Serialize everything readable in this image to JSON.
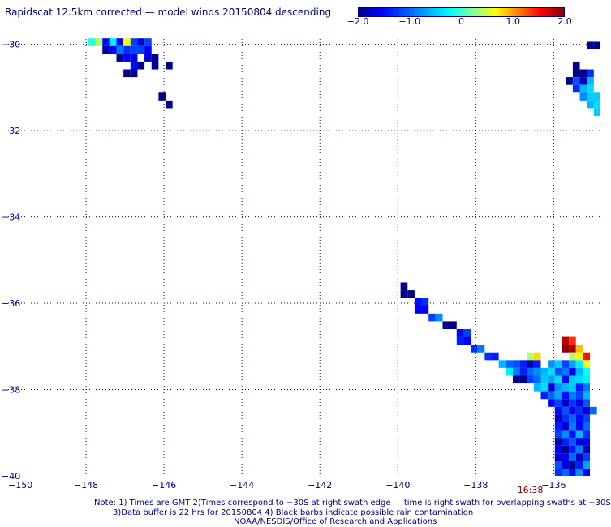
{
  "title": "Rapidscat 12.5km corrected — model winds 20150804 descending",
  "colorbar": {
    "ticks": [
      "−2.0",
      "−1.0",
      "0",
      "1.0",
      "2.0"
    ],
    "tick_values": [
      -2.0,
      -1.0,
      0,
      1.0,
      2.0
    ],
    "min": -2.0,
    "max": 2.0,
    "colors": [
      "#00008b",
      "#0000ff",
      "#0050ff",
      "#00aaff",
      "#00ffff",
      "#80ffa0",
      "#ffff00",
      "#ff8000",
      "#ff0000",
      "#8b0000"
    ]
  },
  "chart_data": {
    "type": "heatmap",
    "title": "Rapidscat 12.5km corrected — model winds 20150804 descending",
    "xlabel": "",
    "ylabel": "",
    "xlim": [
      -150,
      -134.8
    ],
    "ylim": [
      -40,
      -29.8
    ],
    "x_ticks": [
      -150,
      -148,
      -146,
      -144,
      -142,
      -140,
      -138,
      -136
    ],
    "x_tick_labels": [
      "−150",
      "−148",
      "−146",
      "−144",
      "−142",
      "−140",
      "−138",
      "−136"
    ],
    "y_ticks": [
      -30,
      -32,
      -34,
      -36,
      -38,
      -40
    ],
    "y_tick_labels": [
      "−30",
      "−32",
      "−34",
      "−36",
      "−38",
      "−40"
    ],
    "grid": true,
    "cell_size_deg": 0.18,
    "time_annotation": {
      "text": "16:38",
      "lon": -136.6
    },
    "cells": [
      [
        -147.85,
        -29.95,
        -0.1
      ],
      [
        -147.67,
        -29.95,
        0.4
      ],
      [
        -147.49,
        -29.95,
        -1.5
      ],
      [
        -147.31,
        -29.95,
        -0.3
      ],
      [
        -147.13,
        -29.95,
        -1.6
      ],
      [
        -146.95,
        -29.95,
        0.6
      ],
      [
        -146.77,
        -29.95,
        -1.2
      ],
      [
        -146.59,
        -29.95,
        -1.7
      ],
      [
        -146.41,
        -29.95,
        -1.2
      ],
      [
        -147.49,
        -30.13,
        -1.9
      ],
      [
        -147.31,
        -30.13,
        -1.6
      ],
      [
        -147.13,
        -30.13,
        -0.9
      ],
      [
        -146.95,
        -30.13,
        -1.3
      ],
      [
        -146.77,
        -30.13,
        -1.2
      ],
      [
        -146.59,
        -30.13,
        -1.2
      ],
      [
        -146.41,
        -30.13,
        -1.6
      ],
      [
        -147.13,
        -30.31,
        -2.0
      ],
      [
        -146.95,
        -30.31,
        -1.6
      ],
      [
        -146.77,
        -30.31,
        -1.7
      ],
      [
        -146.41,
        -30.31,
        -1.7
      ],
      [
        -146.23,
        -30.31,
        -2.1
      ],
      [
        -146.77,
        -30.49,
        -1.5
      ],
      [
        -146.59,
        -30.49,
        -2.2
      ],
      [
        -146.23,
        -30.49,
        -2.3
      ],
      [
        -145.87,
        -30.49,
        -2.2
      ],
      [
        -146.95,
        -30.67,
        -2.4
      ],
      [
        -146.77,
        -30.67,
        -2.4
      ],
      [
        -146.05,
        -31.21,
        -2.4
      ],
      [
        -145.87,
        -31.39,
        -2.0
      ],
      [
        -135.06,
        -30.03,
        -2.0
      ],
      [
        -134.88,
        -30.03,
        -2.0
      ],
      [
        -135.42,
        -30.49,
        -2.2
      ],
      [
        -135.42,
        -30.67,
        -2.4
      ],
      [
        -135.24,
        -30.67,
        -2.0
      ],
      [
        -135.06,
        -30.67,
        -1.3
      ],
      [
        -135.6,
        -30.85,
        -2.2
      ],
      [
        -135.42,
        -30.85,
        -1.1
      ],
      [
        -135.24,
        -30.85,
        -1.8
      ],
      [
        -135.06,
        -30.85,
        -0.6
      ],
      [
        -135.42,
        -31.03,
        -1.3
      ],
      [
        -135.24,
        -31.03,
        -0.6
      ],
      [
        -135.06,
        -31.03,
        -0.4
      ],
      [
        -135.24,
        -31.21,
        -0.8
      ],
      [
        -135.06,
        -31.21,
        -0.5
      ],
      [
        -134.88,
        -31.21,
        -0.5
      ],
      [
        -135.06,
        -31.39,
        -0.6
      ],
      [
        -134.88,
        -31.39,
        -0.4
      ],
      [
        -134.88,
        -31.57,
        -0.5
      ],
      [
        -139.84,
        -35.61,
        -2.0
      ],
      [
        -139.84,
        -35.79,
        -2.0
      ],
      [
        -139.66,
        -35.79,
        -2.0
      ],
      [
        -139.48,
        -35.97,
        -1.5
      ],
      [
        -139.3,
        -35.97,
        -1.3
      ],
      [
        -139.48,
        -36.15,
        -1.6
      ],
      [
        -139.3,
        -36.15,
        -1.6
      ],
      [
        -139.12,
        -36.33,
        -1.2
      ],
      [
        -138.94,
        -36.33,
        -0.8
      ],
      [
        -138.76,
        -36.51,
        -2.2
      ],
      [
        -138.58,
        -36.51,
        -2.3
      ],
      [
        -138.4,
        -36.69,
        -1.6
      ],
      [
        -138.22,
        -36.69,
        -1.2
      ],
      [
        -138.4,
        -36.87,
        -1.4
      ],
      [
        -138.22,
        -36.87,
        -1.6
      ],
      [
        -138.04,
        -37.05,
        -1.3
      ],
      [
        -137.86,
        -37.05,
        -0.9
      ],
      [
        -137.68,
        -37.23,
        -1.3
      ],
      [
        -137.5,
        -37.23,
        -1.4
      ],
      [
        -137.32,
        -37.41,
        -0.6
      ],
      [
        -137.14,
        -37.41,
        -1.0
      ],
      [
        -136.96,
        -37.41,
        -1.1
      ],
      [
        -136.78,
        -37.41,
        -1.4
      ],
      [
        -137.14,
        -37.59,
        -0.3
      ],
      [
        -136.96,
        -37.59,
        -0.9
      ],
      [
        -136.78,
        -37.59,
        -1.4
      ],
      [
        -136.6,
        -37.59,
        -1.0
      ],
      [
        -136.96,
        -37.77,
        -2.1
      ],
      [
        -136.78,
        -37.77,
        -2.0
      ],
      [
        -136.6,
        -37.77,
        -1.2
      ],
      [
        -136.6,
        -37.23,
        0.4
      ],
      [
        -136.42,
        -37.23,
        0.8
      ],
      [
        -136.6,
        -37.41,
        -1.9
      ],
      [
        -136.42,
        -37.41,
        -1.4
      ],
      [
        -136.42,
        -37.59,
        -0.8
      ],
      [
        -136.24,
        -37.59,
        -0.6
      ],
      [
        -136.42,
        -37.77,
        -1.0
      ],
      [
        -136.24,
        -37.77,
        -0.5
      ],
      [
        -136.42,
        -37.95,
        -0.6
      ],
      [
        -136.24,
        -37.95,
        -0.4
      ],
      [
        -135.7,
        -36.87,
        1.8
      ],
      [
        -135.52,
        -36.87,
        1.4
      ],
      [
        -135.7,
        -37.05,
        2.0
      ],
      [
        -135.52,
        -37.05,
        1.9
      ],
      [
        -135.34,
        -37.05,
        0.9
      ],
      [
        -135.34,
        -37.23,
        0.6
      ],
      [
        -135.16,
        -37.23,
        1.5
      ],
      [
        -135.52,
        -37.23,
        0.4
      ],
      [
        -136.06,
        -37.41,
        -0.8
      ],
      [
        -135.88,
        -37.41,
        -0.5
      ],
      [
        -135.7,
        -37.41,
        -1.2
      ],
      [
        -135.52,
        -37.41,
        -0.7
      ],
      [
        -135.34,
        -37.41,
        -0.3
      ],
      [
        -135.16,
        -37.41,
        0.6
      ],
      [
        -136.06,
        -37.59,
        -0.4
      ],
      [
        -135.88,
        -37.59,
        -1.1
      ],
      [
        -135.7,
        -37.59,
        -0.9
      ],
      [
        -135.52,
        -37.59,
        -1.6
      ],
      [
        -135.34,
        -37.59,
        -0.6
      ],
      [
        -135.16,
        -37.59,
        -0.2
      ],
      [
        -136.06,
        -37.77,
        -0.7
      ],
      [
        -135.88,
        -37.77,
        -0.4
      ],
      [
        -135.7,
        -37.77,
        -1.5
      ],
      [
        -135.52,
        -37.77,
        -0.5
      ],
      [
        -135.34,
        -37.77,
        -0.4
      ],
      [
        -135.16,
        -37.77,
        -0.3
      ],
      [
        -136.06,
        -37.95,
        -1.7
      ],
      [
        -135.88,
        -37.95,
        -0.8
      ],
      [
        -135.7,
        -37.95,
        -0.6
      ],
      [
        -135.52,
        -37.95,
        -0.5
      ],
      [
        -135.34,
        -37.95,
        -1.4
      ],
      [
        -135.16,
        -37.95,
        -0.9
      ],
      [
        -136.24,
        -38.13,
        -1.4
      ],
      [
        -136.06,
        -38.13,
        -1.0
      ],
      [
        -135.88,
        -38.13,
        -0.7
      ],
      [
        -135.7,
        -38.13,
        -1.5
      ],
      [
        -135.52,
        -38.13,
        -0.9
      ],
      [
        -135.34,
        -38.13,
        -1.2
      ],
      [
        -135.16,
        -38.13,
        -0.6
      ],
      [
        -136.06,
        -38.31,
        -1.6
      ],
      [
        -135.88,
        -38.31,
        -1.2
      ],
      [
        -135.7,
        -38.31,
        -1.8
      ],
      [
        -135.52,
        -38.31,
        -1.3
      ],
      [
        -135.34,
        -38.31,
        -1.7
      ],
      [
        -135.16,
        -38.31,
        -1.1
      ],
      [
        -135.88,
        -38.49,
        -1.5
      ],
      [
        -135.7,
        -38.49,
        -1.1
      ],
      [
        -135.52,
        -38.49,
        -1.6
      ],
      [
        -135.34,
        -38.49,
        -1.3
      ],
      [
        -135.16,
        -38.49,
        -1.8
      ],
      [
        -134.98,
        -38.49,
        -1.0
      ],
      [
        -135.88,
        -38.67,
        -1.8
      ],
      [
        -135.7,
        -38.67,
        -1.3
      ],
      [
        -135.52,
        -38.67,
        -1.0
      ],
      [
        -135.34,
        -38.67,
        -1.5
      ],
      [
        -135.16,
        -38.67,
        -1.2
      ],
      [
        -135.88,
        -38.85,
        -1.4
      ],
      [
        -135.7,
        -38.85,
        -1.7
      ],
      [
        -135.52,
        -38.85,
        -0.9
      ],
      [
        -135.34,
        -38.85,
        -1.6
      ],
      [
        -135.16,
        -38.85,
        -1.0
      ],
      [
        -135.88,
        -39.03,
        -1.2
      ],
      [
        -135.7,
        -39.03,
        -0.8
      ],
      [
        -135.52,
        -39.03,
        -1.5
      ],
      [
        -135.34,
        -39.03,
        -0.6
      ],
      [
        -135.16,
        -39.03,
        -1.3
      ],
      [
        -135.88,
        -39.21,
        -1.9
      ],
      [
        -135.7,
        -39.21,
        -1.4
      ],
      [
        -135.52,
        -39.21,
        -1.1
      ],
      [
        -135.34,
        -39.21,
        -1.7
      ],
      [
        -135.16,
        -39.21,
        -1.6
      ],
      [
        -135.88,
        -39.39,
        -1.6
      ],
      [
        -135.7,
        -39.39,
        -2.2
      ],
      [
        -135.52,
        -39.39,
        -1.4
      ],
      [
        -135.34,
        -39.39,
        -0.9
      ],
      [
        -135.16,
        -39.39,
        -1.9
      ],
      [
        -135.88,
        -39.57,
        -1.8
      ],
      [
        -135.7,
        -39.57,
        -1.6
      ],
      [
        -135.52,
        -39.57,
        -1.0
      ],
      [
        -135.34,
        -39.57,
        -1.8
      ],
      [
        -135.16,
        -39.57,
        -1.2
      ],
      [
        -135.88,
        -39.75,
        -1.1
      ],
      [
        -135.7,
        -39.75,
        -1.7
      ],
      [
        -135.52,
        -39.75,
        -2.0
      ],
      [
        -135.34,
        -39.75,
        -1.4
      ],
      [
        -135.16,
        -39.75,
        -0.7
      ],
      [
        -135.88,
        -39.93,
        -1.3
      ],
      [
        -135.7,
        -39.93,
        -1.0
      ],
      [
        -135.52,
        -39.93,
        -1.5
      ],
      [
        -135.34,
        -39.93,
        -0.8
      ],
      [
        -135.16,
        -39.93,
        -1.6
      ]
    ]
  },
  "notes": {
    "line1": "Note: 1) Times are GMT 2)Times correspond to −30S at right swath edge — time is right swath for overlapping swaths at −30S",
    "line2": "3)Data buffer is 22 hrs for 20150804 4) Black barbs indicate possible rain contamination",
    "line3": "NOAA/NESDIS/Office of Research and Applications"
  }
}
